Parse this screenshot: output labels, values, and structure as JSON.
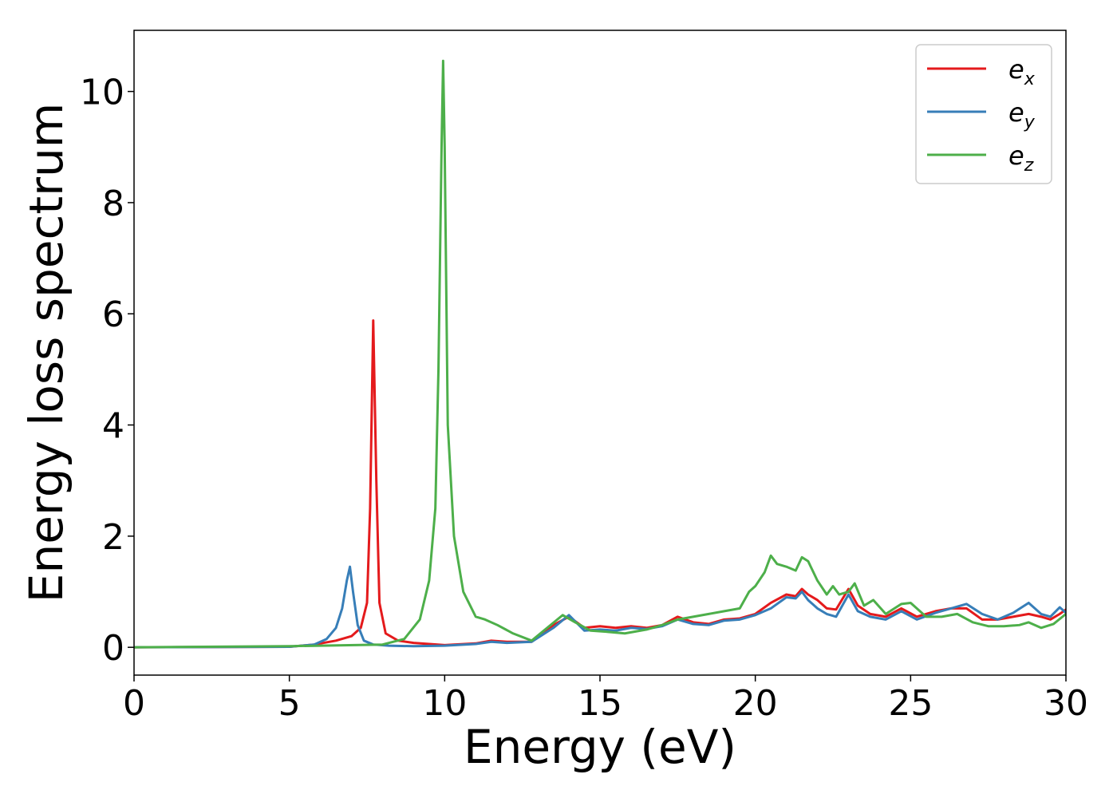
{
  "chart_data": {
    "type": "line",
    "xlabel": "Energy (eV)",
    "ylabel": "Energy loss spectrum",
    "xlim": [
      0,
      30
    ],
    "ylim": [
      -0.5,
      11.1
    ],
    "xticks": [
      0,
      5,
      10,
      15,
      20,
      25,
      30
    ],
    "yticks": [
      0,
      2,
      4,
      6,
      8,
      10
    ],
    "grid": false,
    "legend_position": "top-right",
    "series": [
      {
        "name": "e",
        "subscript": "x",
        "color": "#e41a1c",
        "x": [
          0,
          5,
          5.8,
          6.5,
          7.0,
          7.3,
          7.5,
          7.6,
          7.7,
          7.8,
          7.9,
          8.1,
          8.5,
          9.0,
          10.0,
          11.0,
          11.5,
          12.0,
          12.8,
          13.5,
          14.0,
          14.5,
          15.0,
          15.5,
          16.0,
          16.5,
          17.0,
          17.5,
          18.0,
          18.5,
          19.0,
          19.5,
          20.0,
          20.5,
          21.0,
          21.3,
          21.5,
          21.7,
          22.0,
          22.3,
          22.6,
          23.0,
          23.3,
          23.7,
          24.2,
          24.7,
          25.2,
          25.8,
          26.3,
          26.8,
          27.3,
          27.8,
          28.3,
          28.8,
          29.2,
          29.5,
          29.8,
          30.0
        ],
        "y": [
          0,
          0.01,
          0.05,
          0.12,
          0.2,
          0.35,
          0.8,
          2.5,
          5.88,
          3.0,
          0.8,
          0.25,
          0.12,
          0.08,
          0.04,
          0.07,
          0.12,
          0.1,
          0.1,
          0.4,
          0.55,
          0.35,
          0.38,
          0.35,
          0.38,
          0.35,
          0.4,
          0.55,
          0.45,
          0.42,
          0.5,
          0.52,
          0.6,
          0.8,
          0.95,
          0.92,
          1.05,
          0.95,
          0.85,
          0.7,
          0.68,
          1.05,
          0.75,
          0.6,
          0.55,
          0.7,
          0.55,
          0.65,
          0.7,
          0.7,
          0.5,
          0.5,
          0.55,
          0.6,
          0.55,
          0.5,
          0.6,
          0.68
        ]
      },
      {
        "name": "e",
        "subscript": "y",
        "color": "#377eb8",
        "x": [
          0,
          5,
          5.8,
          6.2,
          6.5,
          6.7,
          6.85,
          6.95,
          7.05,
          7.2,
          7.4,
          7.7,
          8.2,
          9.0,
          10.0,
          11.0,
          11.5,
          12.0,
          12.8,
          13.5,
          14.0,
          14.5,
          15.0,
          15.5,
          16.0,
          16.5,
          17.0,
          17.5,
          18.0,
          18.5,
          19.0,
          19.5,
          20.0,
          20.5,
          21.0,
          21.3,
          21.5,
          21.7,
          22.0,
          22.3,
          22.6,
          23.0,
          23.3,
          23.7,
          24.2,
          24.7,
          25.2,
          25.8,
          26.3,
          26.8,
          27.3,
          27.8,
          28.3,
          28.8,
          29.2,
          29.5,
          29.8,
          30.0
        ],
        "y": [
          0,
          0.01,
          0.05,
          0.15,
          0.35,
          0.7,
          1.2,
          1.45,
          1.0,
          0.4,
          0.12,
          0.05,
          0.03,
          0.02,
          0.03,
          0.06,
          0.1,
          0.08,
          0.1,
          0.35,
          0.58,
          0.3,
          0.32,
          0.3,
          0.35,
          0.33,
          0.38,
          0.5,
          0.42,
          0.4,
          0.48,
          0.5,
          0.58,
          0.7,
          0.9,
          0.88,
          1.0,
          0.85,
          0.7,
          0.6,
          0.55,
          0.95,
          0.65,
          0.55,
          0.5,
          0.65,
          0.5,
          0.62,
          0.7,
          0.78,
          0.6,
          0.5,
          0.62,
          0.8,
          0.6,
          0.55,
          0.72,
          0.62
        ]
      },
      {
        "name": "e",
        "subscript": "z",
        "color": "#4daf4a",
        "x": [
          0,
          5,
          8.0,
          8.7,
          9.2,
          9.5,
          9.7,
          9.8,
          9.9,
          9.95,
          10.0,
          10.1,
          10.3,
          10.6,
          11.0,
          11.3,
          11.7,
          12.2,
          12.8,
          13.3,
          13.8,
          14.2,
          14.7,
          15.2,
          15.8,
          16.5,
          17.0,
          17.5,
          18.0,
          18.5,
          19.0,
          19.5,
          19.8,
          20.0,
          20.3,
          20.5,
          20.7,
          21.0,
          21.3,
          21.5,
          21.7,
          22.0,
          22.3,
          22.5,
          22.7,
          23.0,
          23.2,
          23.5,
          23.8,
          24.2,
          24.7,
          25.0,
          25.5,
          26.0,
          26.5,
          27.0,
          27.5,
          28.0,
          28.5,
          28.8,
          29.2,
          29.6,
          30.0
        ],
        "y": [
          0,
          0.02,
          0.05,
          0.15,
          0.5,
          1.2,
          2.5,
          5.0,
          9.0,
          10.55,
          9.0,
          4.0,
          2.0,
          1.0,
          0.55,
          0.5,
          0.4,
          0.25,
          0.12,
          0.35,
          0.58,
          0.45,
          0.3,
          0.28,
          0.25,
          0.32,
          0.4,
          0.5,
          0.55,
          0.6,
          0.65,
          0.7,
          1.0,
          1.1,
          1.35,
          1.65,
          1.5,
          1.45,
          1.38,
          1.62,
          1.55,
          1.2,
          0.95,
          1.1,
          0.95,
          1.0,
          1.15,
          0.75,
          0.85,
          0.6,
          0.78,
          0.8,
          0.55,
          0.55,
          0.6,
          0.45,
          0.38,
          0.38,
          0.4,
          0.45,
          0.35,
          0.42,
          0.6
        ]
      }
    ]
  }
}
